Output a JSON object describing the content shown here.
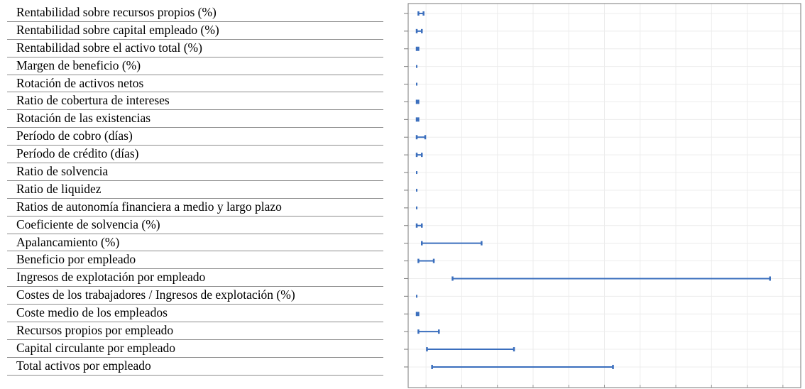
{
  "chart_data": {
    "type": "range",
    "categories": [
      "Rentabilidad sobre recursos propios (%)",
      "Rentabilidad sobre capital empleado (%)",
      "Rentabilidad sobre el activo total (%)",
      "Margen de beneficio (%)",
      "Rotación de activos netos",
      "Ratio de cobertura de intereses",
      "Rotación de las existencias",
      "Período de cobro (días)",
      "Período de crédito (días)",
      "Ratio de solvencia",
      "Ratio de liquidez",
      "Ratios de autonomía financiera a medio y largo plazo",
      "Coeficiente de solvencia (%)",
      "Apalancamiento (%)",
      "Beneficio por empleado",
      "Ingresos de explotación por empleado",
      "Costes de los trabajadores / Ingresos de explotación (%)",
      "Coste medio de los empleados",
      "Recursos propios por empleado",
      "Capital circulante por empleado",
      "Total activos por empleado"
    ],
    "low": [
      0.1,
      0.0,
      0.0,
      0.0,
      0.0,
      0.0,
      0.0,
      0.0,
      0.0,
      0.0,
      0.0,
      0.0,
      0.0,
      0.3,
      0.1,
      2.1,
      0.0,
      0.0,
      0.1,
      0.6,
      0.9
    ],
    "high": [
      0.4,
      0.3,
      0.1,
      0.0,
      0.0,
      0.1,
      0.1,
      0.5,
      0.3,
      0.0,
      0.0,
      0.0,
      0.3,
      3.8,
      1.0,
      20.7,
      0.0,
      0.1,
      1.3,
      5.7,
      11.5
    ],
    "xlim": [
      -0.5,
      22.5
    ],
    "x_tick_count": 11,
    "grid": true,
    "series_color": "#3a6ebd",
    "gridline_color": "#ececec",
    "frame_color": "#7a7a7a"
  }
}
